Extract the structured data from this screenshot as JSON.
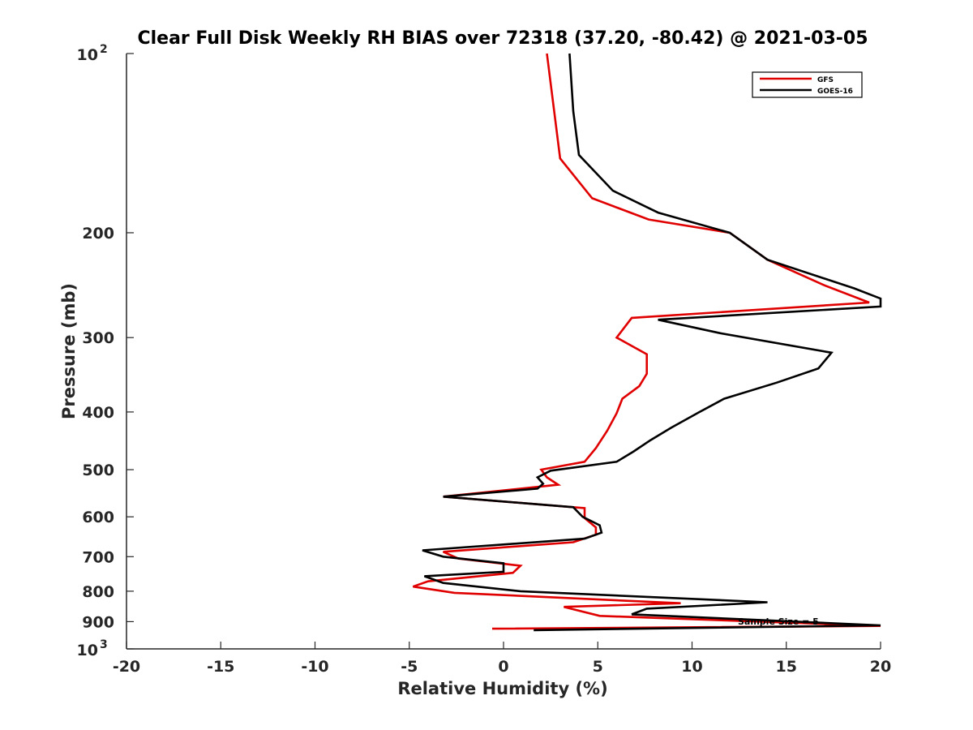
{
  "chart_data": {
    "type": "line",
    "title": "Clear Full Disk Weekly RH BIAS over 72318 (37.20, -80.42) @ 2021-03-05",
    "xlabel": "Relative Humidity (%)",
    "ylabel": "Pressure (mb)",
    "xlim": [
      -20,
      20
    ],
    "ylim": [
      100,
      1000
    ],
    "y_scale": "log",
    "y_reversed": true,
    "x_ticks": [
      "-20",
      "-15",
      "-10",
      "-5",
      "0",
      "5",
      "10",
      "15",
      "20"
    ],
    "y_ticks": [
      {
        "value": 100,
        "base": "10",
        "exp": "2"
      },
      {
        "value": 200,
        "label": "200"
      },
      {
        "value": 300,
        "label": "300"
      },
      {
        "value": 400,
        "label": "400"
      },
      {
        "value": 500,
        "label": "500"
      },
      {
        "value": 600,
        "label": "600"
      },
      {
        "value": 700,
        "label": "700"
      },
      {
        "value": 800,
        "label": "800"
      },
      {
        "value": 900,
        "label": "900"
      },
      {
        "value": 1000,
        "base": "10",
        "exp": "3"
      }
    ],
    "grid": false,
    "legend_position": "top-right",
    "annotation": "Sample Size = 5",
    "series": [
      {
        "name": "GFS",
        "color": "#e00000",
        "points": [
          [
            2.3,
            100
          ],
          [
            3.0,
            150
          ],
          [
            4.7,
            175
          ],
          [
            7.7,
            190
          ],
          [
            12.0,
            200
          ],
          [
            14.0,
            222
          ],
          [
            17.0,
            245
          ],
          [
            19.4,
            262
          ],
          [
            6.8,
            278
          ],
          [
            6.0,
            300
          ],
          [
            7.6,
            320
          ],
          [
            7.6,
            345
          ],
          [
            7.2,
            362
          ],
          [
            6.3,
            380
          ],
          [
            6.0,
            402
          ],
          [
            5.5,
            430
          ],
          [
            4.9,
            460
          ],
          [
            4.3,
            485
          ],
          [
            2.0,
            500
          ],
          [
            2.3,
            515
          ],
          [
            2.9,
            530
          ],
          [
            -3.2,
            555
          ],
          [
            4.3,
            580
          ],
          [
            4.3,
            603
          ],
          [
            4.9,
            625
          ],
          [
            4.9,
            643
          ],
          [
            3.7,
            662
          ],
          [
            -3.2,
            687
          ],
          [
            -2.4,
            705
          ],
          [
            0.9,
            725
          ],
          [
            0.5,
            745
          ],
          [
            -4.0,
            770
          ],
          [
            -4.8,
            786
          ],
          [
            -2.6,
            805
          ],
          [
            9.4,
            838
          ],
          [
            3.2,
            850
          ],
          [
            5.1,
            880
          ],
          [
            20.0,
            915
          ],
          [
            -0.6,
            925
          ]
        ]
      },
      {
        "name": "GOES-16",
        "color": "#000000",
        "points": [
          [
            3.5,
            100
          ],
          [
            3.7,
            125
          ],
          [
            4.0,
            148
          ],
          [
            5.8,
            170
          ],
          [
            8.2,
            185
          ],
          [
            12.0,
            200
          ],
          [
            14.0,
            222
          ],
          [
            18.6,
            248
          ],
          [
            20.0,
            258
          ],
          [
            20.0,
            266
          ],
          [
            8.2,
            280
          ],
          [
            11.5,
            295
          ],
          [
            17.4,
            318
          ],
          [
            16.7,
            338
          ],
          [
            14.5,
            357
          ],
          [
            11.7,
            380
          ],
          [
            10.4,
            400
          ],
          [
            8.9,
            425
          ],
          [
            7.8,
            446
          ],
          [
            6.9,
            466
          ],
          [
            6.0,
            485
          ],
          [
            2.5,
            502
          ],
          [
            1.8,
            515
          ],
          [
            2.1,
            528
          ],
          [
            1.8,
            538
          ],
          [
            -3.2,
            555
          ],
          [
            3.7,
            578
          ],
          [
            4.2,
            600
          ],
          [
            5.1,
            620
          ],
          [
            5.2,
            638
          ],
          [
            4.3,
            653
          ],
          [
            -4.3,
            683
          ],
          [
            -3.2,
            700
          ],
          [
            0.0,
            718
          ],
          [
            0.0,
            742
          ],
          [
            -4.2,
            755
          ],
          [
            -3.2,
            775
          ],
          [
            0.9,
            800
          ],
          [
            14.0,
            835
          ],
          [
            7.6,
            856
          ],
          [
            6.8,
            875
          ],
          [
            20.0,
            913
          ],
          [
            1.6,
            930
          ]
        ]
      }
    ]
  }
}
